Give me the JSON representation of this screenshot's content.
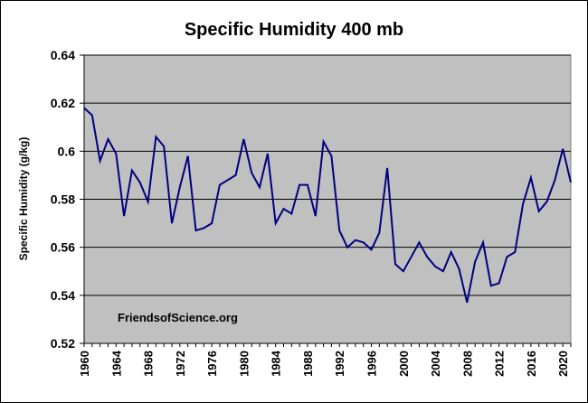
{
  "chart_data": {
    "type": "line",
    "title": "Specific Humidity  400 mb",
    "xlabel": "",
    "ylabel": "Specific Humidity (g/kg)",
    "annotation": "FriendsofScience.org",
    "ylim": [
      0.52,
      0.64
    ],
    "xlim": [
      1960,
      2021
    ],
    "yticks": [
      "0.52",
      "0.54",
      "0.56",
      "0.58",
      "0.6",
      "0.62",
      "0.64"
    ],
    "xticks": [
      "1960",
      "1964",
      "1968",
      "1972",
      "1976",
      "1980",
      "1984",
      "1988",
      "1992",
      "1996",
      "2000",
      "2004",
      "2008",
      "2012",
      "2016",
      "2020"
    ],
    "grid": true,
    "plot_background": "#c0c0c0",
    "line_color": "#000080",
    "series": [
      {
        "x": [
          1960,
          1961,
          1962,
          1963,
          1964,
          1965,
          1966,
          1967,
          1968,
          1969,
          1970,
          1971,
          1972,
          1973,
          1974,
          1975,
          1976,
          1977,
          1978,
          1979,
          1980,
          1981,
          1982,
          1983,
          1984,
          1985,
          1986,
          1987,
          1988,
          1989,
          1990,
          1991,
          1992,
          1993,
          1994,
          1995,
          1996,
          1997,
          1998,
          1999,
          2000,
          2001,
          2002,
          2003,
          2004,
          2005,
          2006,
          2007,
          2008,
          2009,
          2010,
          2011,
          2012,
          2013,
          2014,
          2015,
          2016,
          2017,
          2018,
          2019,
          2020,
          2021
        ],
        "values": [
          0.618,
          0.615,
          0.596,
          0.605,
          0.599,
          0.573,
          0.592,
          0.587,
          0.579,
          0.606,
          0.602,
          0.57,
          0.585,
          0.598,
          0.567,
          0.568,
          0.57,
          0.586,
          0.588,
          0.59,
          0.605,
          0.591,
          0.585,
          0.599,
          0.57,
          0.576,
          0.574,
          0.586,
          0.586,
          0.573,
          0.604,
          0.598,
          0.567,
          0.56,
          0.563,
          0.562,
          0.559,
          0.566,
          0.593,
          0.553,
          0.55,
          0.556,
          0.562,
          0.556,
          0.552,
          0.55,
          0.558,
          0.551,
          0.537,
          0.554,
          0.562,
          0.544,
          0.545,
          0.556,
          0.558,
          0.578,
          0.589,
          0.575,
          0.579,
          0.588,
          0.601,
          0.587
        ]
      }
    ]
  }
}
